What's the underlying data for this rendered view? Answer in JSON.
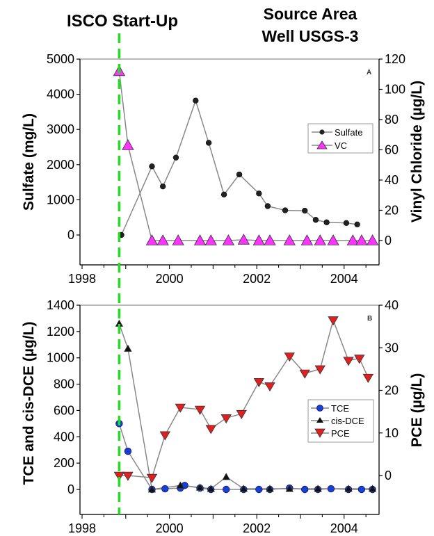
{
  "header": {
    "isco_label": "ISCO Start-Up",
    "title_line1": "Source Area",
    "title_line2": "Well USGS-3"
  },
  "colors": {
    "startup_line": "#22dd22",
    "series_line": "#888888",
    "sulfate_marker": "#222222",
    "vc_marker": "#ff33ff",
    "tce_marker": "#1a3fd6",
    "cisdce_marker": "#111111",
    "pce_marker": "#e02020"
  },
  "chart_data": [
    {
      "type": "line",
      "panel": "A",
      "xlim": [
        1998,
        2004.8
      ],
      "x_ticks": [
        1998,
        2000,
        2002,
        2004
      ],
      "x_tick_labels": [
        "1998",
        "2000",
        "2002",
        "2004"
      ],
      "ylabel": "Sulfate (mg/L)",
      "ylim": [
        -800,
        5000
      ],
      "y_ticks": [
        0,
        1000,
        2000,
        3000,
        4000,
        5000
      ],
      "y_tick_labels": [
        "0",
        "1000",
        "2000",
        "3000",
        "4000",
        "5000"
      ],
      "y2label": "Vinyl Chloride (µg/L)",
      "y2lim": [
        -18,
        120
      ],
      "y2_ticks": [
        0,
        20,
        40,
        60,
        80,
        100,
        120
      ],
      "y2_tick_labels": [
        "0",
        "20",
        "40",
        "60",
        "80",
        "100",
        "120"
      ],
      "legend_position": "right",
      "series": [
        {
          "name": "Sulfate",
          "axis": "left",
          "marker": "circle",
          "x": [
            1998.9,
            1999.6,
            1999.85,
            2000.15,
            2000.6,
            2000.9,
            2001.25,
            2001.6,
            2002.05,
            2002.25,
            2002.65,
            2003.1,
            2003.35,
            2003.6,
            2004.05,
            2004.3
          ],
          "y": [
            0,
            1950,
            1380,
            2200,
            3820,
            2620,
            1150,
            1720,
            1180,
            820,
            700,
            690,
            430,
            360,
            340,
            300
          ]
        },
        {
          "name": "VC",
          "axis": "right",
          "marker": "triangle-up",
          "x": [
            1998.85,
            1999.05,
            1999.6,
            1999.85,
            2000.2,
            2000.7,
            2000.95,
            2001.35,
            2001.7,
            2002.05,
            2002.3,
            2002.75,
            2003.15,
            2003.45,
            2003.75,
            2004.2,
            2004.4,
            2004.65
          ],
          "y": [
            112,
            63,
            0,
            0,
            0,
            0,
            0,
            0,
            0.5,
            0,
            0,
            0,
            0,
            0,
            0,
            0,
            0,
            0
          ]
        }
      ]
    },
    {
      "type": "line",
      "panel": "B",
      "xlim": [
        1998,
        2004.8
      ],
      "x_ticks": [
        1998,
        2000,
        2002,
        2004
      ],
      "x_tick_labels": [
        "1998",
        "2000",
        "2002",
        "2004"
      ],
      "ylabel": "TCE and cis-DCE (µg/L)",
      "ylim": [
        -100,
        1400
      ],
      "y_ticks": [
        0,
        200,
        400,
        600,
        800,
        1000,
        1200,
        1400
      ],
      "y_tick_labels": [
        "0",
        "200",
        "400",
        "600",
        "800",
        "1000",
        "1200",
        "1400"
      ],
      "y2label": "PCE (µg/L)",
      "y2lim": [
        -5,
        40
      ],
      "y2_ticks": [
        0,
        10,
        20,
        30,
        40
      ],
      "y2_tick_labels": [
        "0",
        "10",
        "20",
        "30",
        "40"
      ],
      "legend_position": "right",
      "series": [
        {
          "name": "TCE",
          "axis": "left",
          "marker": "circle",
          "x": [
            1998.85,
            1999.05,
            1999.6,
            1999.9,
            2000.25,
            2000.35,
            2000.7,
            2000.95,
            2001.3,
            2001.7,
            2002.05,
            2002.3,
            2002.75,
            2003.1,
            2003.4,
            2003.7,
            2004.1,
            2004.4,
            2004.65
          ],
          "y": [
            500,
            290,
            0,
            5,
            10,
            30,
            10,
            0,
            0,
            0,
            0,
            0,
            10,
            0,
            0,
            5,
            0,
            0,
            0
          ]
        },
        {
          "name": "cis-DCE",
          "axis": "left",
          "marker": "triangle-up",
          "x": [
            1998.85,
            1999.05,
            1999.6,
            2000.25,
            2000.7,
            2000.95,
            2001.3,
            2001.7,
            2002.3,
            2002.75,
            2003.4,
            2004.1,
            2004.65
          ],
          "y": [
            1260,
            1070,
            0,
            30,
            15,
            5,
            95,
            5,
            5,
            5,
            5,
            5,
            5
          ]
        },
        {
          "name": "PCE",
          "axis": "right",
          "marker": "triangle-down",
          "x": [
            1998.85,
            1999.05,
            1999.6,
            1999.9,
            2000.25,
            2000.7,
            2000.95,
            2001.3,
            2001.65,
            2002.05,
            2002.3,
            2002.75,
            2003.1,
            2003.45,
            2003.75,
            2004.1,
            2004.35,
            2004.55
          ],
          "y": [
            0,
            0,
            -0.5,
            9.5,
            16,
            15.5,
            11,
            13.5,
            14.5,
            22,
            21,
            28,
            24,
            25,
            36.5,
            27,
            27.5,
            23
          ]
        }
      ]
    }
  ]
}
